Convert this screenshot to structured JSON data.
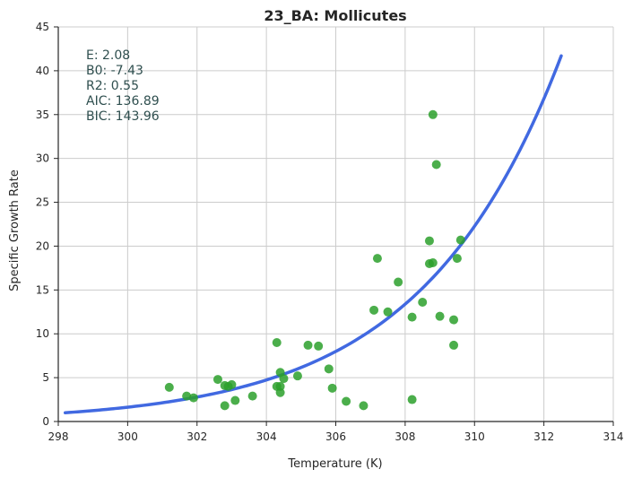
{
  "chart_data": {
    "type": "scatter",
    "title": "23_BA: Mollicutes",
    "xlabel": "Temperature (K)",
    "ylabel": "Specific Growth Rate",
    "xlim": [
      298,
      314
    ],
    "ylim": [
      0,
      45
    ],
    "xticks": [
      "298",
      "300",
      "302",
      "304",
      "306",
      "308",
      "310",
      "312",
      "314"
    ],
    "yticks": [
      "0",
      "5",
      "10",
      "15",
      "20",
      "25",
      "30",
      "35",
      "40",
      "45"
    ],
    "grid": true,
    "stats": [
      "E:  2.08",
      "B0:  -7.43",
      "R2:  0.55",
      "AIC: 136.89",
      "BIC: 143.96"
    ],
    "colors": {
      "points": "#2ca02c",
      "fit_line": "#4169e1",
      "stats_text": "#2f4f4f"
    },
    "points": {
      "x": [
        301.2,
        301.7,
        301.9,
        302.6,
        302.8,
        302.8,
        302.9,
        303.0,
        303.1,
        303.6,
        304.3,
        304.3,
        304.4,
        304.4,
        304.4,
        304.5,
        304.9,
        305.2,
        305.5,
        305.8,
        305.9,
        306.3,
        306.8,
        307.1,
        307.2,
        307.5,
        307.8,
        308.2,
        308.2,
        308.5,
        308.7,
        308.7,
        308.8,
        308.8,
        308.9,
        309.0,
        309.4,
        309.4,
        309.5,
        309.6
      ],
      "y": [
        3.9,
        2.9,
        2.7,
        4.8,
        4.1,
        1.8,
        4.0,
        4.2,
        2.4,
        2.9,
        9.0,
        4.0,
        5.6,
        4.0,
        3.3,
        4.9,
        5.2,
        8.7,
        8.6,
        6.0,
        3.8,
        2.3,
        1.8,
        12.7,
        18.6,
        12.5,
        15.9,
        11.9,
        2.5,
        13.6,
        20.6,
        18.0,
        18.1,
        35.0,
        29.3,
        12.0,
        11.6,
        8.7,
        18.6,
        20.7
      ]
    },
    "fit": {
      "x_start": 298.2,
      "x_end": 312.5,
      "B0": -7.43,
      "E": 2.08
    }
  }
}
